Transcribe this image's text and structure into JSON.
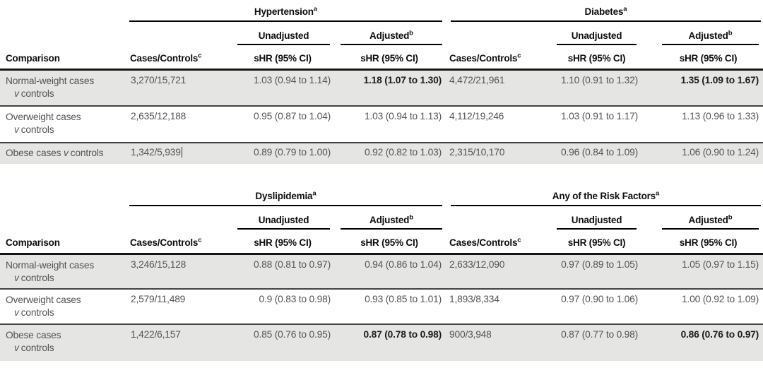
{
  "labels": {
    "comparison": "Comparison",
    "cases_controls": "Cases/Controls",
    "cases_controls_sup": "c",
    "unadjusted": "Unadjusted",
    "adjusted": "Adjusted",
    "adjusted_sup": "b",
    "shr_ci": "sHR (95% CI)",
    "group_sup": "a",
    "versus": "v",
    "controls": "controls"
  },
  "colors": {
    "row_shade": "#e5e5e3",
    "rule_heavy": "#161616",
    "rule_row": "#434343",
    "text_body": "#545454",
    "text_header": "#0d0d0d"
  },
  "tables": [
    {
      "groups": [
        {
          "title": "Hypertension"
        },
        {
          "title": "Diabetes"
        }
      ],
      "rows": [
        {
          "name": "Normal-weight cases",
          "g1": {
            "cases": "3,270/15,721",
            "unadjusted": "1.03 (0.94 to 1.14)",
            "adjusted": "1.18 (1.07 to 1.30)"
          },
          "g2": {
            "cases": "4,472/21,961",
            "unadjusted": "1.10 (0.91 to 1.32)",
            "adjusted": "1.35 (1.09 to 1.67)"
          }
        },
        {
          "name": "Overweight cases",
          "g1": {
            "cases": "2,635/12,188",
            "unadjusted": "0.95 (0.87 to 1.04)",
            "adjusted": "1.03 (0.94 to 1.13)"
          },
          "g2": {
            "cases": "4,112/19,246",
            "unadjusted": "1.03 (0.91 to 1.17)",
            "adjusted": "1.13 (0.96 to 1.33)"
          }
        },
        {
          "name": "Obese cases",
          "g1": {
            "cases": "1,342/5,939",
            "unadjusted": "0.89 (0.79 to 1.00)",
            "adjusted": "0.92 (0.82 to 1.03)"
          },
          "g2": {
            "cases": "2,315/10,170",
            "unadjusted": "0.96 (0.84 to 1.09)",
            "adjusted": "1.06 (0.90 to 1.24)"
          }
        }
      ]
    },
    {
      "groups": [
        {
          "title": "Dyslipidemia"
        },
        {
          "title": "Any of the Risk Factors"
        }
      ],
      "rows": [
        {
          "name": "Normal-weight cases",
          "g1": {
            "cases": "3,246/15,128",
            "unadjusted": "0.88 (0.81 to 0.97)",
            "adjusted": "0.94 (0.86 to 1.04)"
          },
          "g2": {
            "cases": "2,633/12,090",
            "unadjusted": "0.97 (0.89 to 1.05)",
            "adjusted": "1.05 (0.97 to 1.15)"
          }
        },
        {
          "name": "Overweight cases",
          "g1": {
            "cases": "2,579/11,489",
            "unadjusted": "0.9 (0.83 to 0.98)",
            "adjusted": "0.93 (0.85 to 1.01)"
          },
          "g2": {
            "cases": "1,893/8,334",
            "unadjusted": "0.97 (0.90 to 1.06)",
            "adjusted": "1.00 (0.92 to 1.09)"
          }
        },
        {
          "name": "Obese cases",
          "g1": {
            "cases": "1,422/6,157",
            "unadjusted": "0.85 (0.76 to 0.95)",
            "adjusted": "0.87 (0.78 to 0.98)"
          },
          "g2": {
            "cases": "900/3,948",
            "unadjusted": "0.87 (0.77 to 0.98)",
            "adjusted": "0.86 (0.76 to 0.97)"
          }
        }
      ]
    }
  ]
}
